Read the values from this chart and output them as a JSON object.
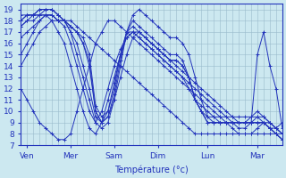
{
  "xlabel": "Température (°c)",
  "background_color": "#cce8f0",
  "line_color": "#2233bb",
  "grid_color": "#99bbcc",
  "ylim": [
    7,
    19.5
  ],
  "xlim": [
    0,
    42
  ],
  "xtick_labels": [
    "Ven",
    "Mer",
    "Sam",
    "Dim",
    "Lun",
    "Mar"
  ],
  "xtick_positions": [
    1,
    8,
    15,
    22,
    30,
    38
  ],
  "ytick_positions": [
    7,
    8,
    9,
    10,
    11,
    12,
    13,
    14,
    15,
    16,
    17,
    18,
    19
  ],
  "n_steps": 43,
  "series": [
    [
      0,
      14,
      1,
      15,
      2,
      16,
      3,
      17,
      4,
      17.5,
      5,
      18,
      6,
      18,
      7,
      18,
      8,
      18,
      9,
      17.5,
      10,
      17,
      11,
      16.5,
      12,
      16,
      13,
      15.5,
      14,
      15,
      15,
      14.5,
      16,
      14,
      17,
      13.5,
      18,
      13,
      19,
      12.5,
      20,
      12,
      21,
      11.5,
      22,
      11,
      23,
      10.5,
      24,
      10,
      25,
      9.5,
      26,
      9,
      27,
      8.5,
      28,
      8,
      29,
      8,
      30,
      8,
      31,
      8,
      32,
      8,
      33,
      8,
      34,
      8,
      35,
      8,
      36,
      8,
      37,
      8,
      38,
      8,
      39,
      8,
      40,
      8,
      41,
      8,
      42,
      8
    ],
    [
      0,
      12,
      1,
      11,
      2,
      10,
      3,
      9,
      4,
      8.5,
      5,
      8,
      6,
      7.5,
      7,
      7.5,
      8,
      8,
      9,
      10,
      10,
      12,
      11,
      14,
      12,
      16,
      13,
      17,
      14,
      18,
      15,
      18,
      16,
      17.5,
      17,
      17,
      18,
      16.5,
      19,
      16,
      20,
      15.5,
      21,
      15,
      22,
      14.5,
      23,
      14,
      24,
      13.5,
      25,
      13,
      26,
      12.5,
      27,
      12,
      28,
      11.5,
      29,
      11,
      30,
      10.5,
      31,
      10,
      32,
      9.5,
      33,
      9,
      34,
      8.5,
      35,
      8,
      36,
      8,
      37,
      8,
      38,
      8.5,
      39,
      9,
      40,
      9,
      41,
      8.5,
      42,
      8
    ],
    [
      0,
      15,
      1,
      16,
      2,
      17,
      3,
      18,
      4,
      18.5,
      5,
      18,
      6,
      17,
      7,
      16,
      8,
      14,
      9,
      12,
      10,
      10,
      11,
      8.5,
      12,
      8,
      13,
      9,
      14,
      11,
      15,
      13,
      16,
      15,
      17,
      16.5,
      18,
      17,
      19,
      16.5,
      20,
      16,
      21,
      15.5,
      22,
      15,
      23,
      14.5,
      24,
      14,
      25,
      13.5,
      26,
      13,
      27,
      12.5,
      28,
      12,
      29,
      11.5,
      30,
      11,
      31,
      10.5,
      32,
      10,
      33,
      9.5,
      34,
      9,
      35,
      8.5,
      36,
      8.5,
      37,
      9,
      38,
      9.5,
      39,
      9,
      40,
      8.5,
      41,
      8,
      42,
      7.5
    ],
    [
      0,
      16.5,
      1,
      17,
      2,
      17.5,
      3,
      18,
      4,
      18.5,
      5,
      18.5,
      6,
      18,
      7,
      17.5,
      8,
      16,
      9,
      14,
      10,
      12,
      11,
      10,
      12,
      9,
      13,
      10,
      14,
      12,
      15,
      14,
      16,
      15.5,
      17,
      16.5,
      18,
      17,
      19,
      16.5,
      20,
      16,
      21,
      15.5,
      22,
      15,
      23,
      14.5,
      24,
      14,
      25,
      13.5,
      26,
      13,
      27,
      12,
      28,
      11,
      29,
      10.5,
      30,
      10,
      31,
      9.5,
      32,
      9,
      33,
      9,
      34,
      9,
      35,
      9,
      36,
      9,
      37,
      9,
      38,
      9,
      39,
      9,
      40,
      8.5,
      41,
      8,
      42,
      7.5
    ],
    [
      0,
      17.5,
      1,
      18,
      2,
      18,
      3,
      18.5,
      4,
      19,
      5,
      19,
      6,
      18.5,
      7,
      18,
      8,
      17,
      9,
      15,
      10,
      13,
      11,
      11,
      12,
      9,
      13,
      8.5,
      14,
      9,
      15,
      11,
      16,
      13,
      17,
      15,
      18,
      16.5,
      19,
      17,
      20,
      16.5,
      21,
      16,
      22,
      15.5,
      23,
      15,
      24,
      14.5,
      25,
      14,
      26,
      13.5,
      27,
      13,
      28,
      12.5,
      29,
      12,
      30,
      11.5,
      31,
      11,
      32,
      10.5,
      33,
      10,
      34,
      9.5,
      35,
      9,
      36,
      9,
      37,
      9.5,
      38,
      10,
      39,
      9.5,
      40,
      9,
      41,
      8.5,
      42,
      8
    ],
    [
      0,
      17.5,
      1,
      18,
      2,
      18.5,
      3,
      19,
      4,
      19,
      5,
      19,
      6,
      18.5,
      7,
      18,
      8,
      17,
      9,
      16,
      10,
      14,
      11,
      12,
      12,
      9.5,
      13,
      9,
      14,
      10,
      15,
      12.5,
      16,
      15,
      17,
      17,
      18,
      18.5,
      19,
      19,
      20,
      18.5,
      21,
      18,
      22,
      17.5,
      23,
      17,
      24,
      16.5,
      25,
      16.5,
      26,
      16,
      27,
      15,
      28,
      13,
      29,
      11,
      30,
      9.5,
      31,
      9,
      32,
      9,
      33,
      9,
      34,
      9,
      35,
      9,
      36,
      9,
      37,
      9,
      38,
      9,
      39,
      9,
      40,
      8.5,
      41,
      8,
      42,
      7.5
    ],
    [
      0,
      18,
      1,
      18.5,
      2,
      18.5,
      3,
      19,
      4,
      19,
      5,
      19,
      6,
      18.5,
      7,
      18,
      8,
      17.5,
      9,
      17,
      10,
      16,
      11,
      14,
      12,
      10,
      13,
      9,
      14,
      9.5,
      15,
      11,
      16,
      14,
      17,
      17,
      18,
      18,
      19,
      17.5,
      20,
      17,
      21,
      16.5,
      22,
      16,
      23,
      15.5,
      24,
      15,
      25,
      15,
      26,
      14.5,
      27,
      13,
      28,
      11,
      29,
      10,
      30,
      9,
      31,
      9,
      32,
      9,
      33,
      9,
      34,
      9,
      35,
      9,
      36,
      9,
      37,
      9,
      38,
      15,
      39,
      17,
      40,
      14,
      41,
      12,
      42,
      8.5
    ],
    [
      0,
      18,
      1,
      18.5,
      2,
      18.5,
      3,
      18.5,
      4,
      18.5,
      5,
      18.5,
      6,
      18,
      7,
      18,
      8,
      17.5,
      9,
      17,
      10,
      16,
      11,
      14.5,
      12,
      10,
      13,
      9,
      14,
      9.5,
      15,
      11.5,
      16,
      14.5,
      17,
      17,
      18,
      17.5,
      19,
      17,
      20,
      16.5,
      21,
      16,
      22,
      15.5,
      23,
      15,
      24,
      14.5,
      25,
      14.5,
      26,
      14,
      27,
      13,
      28,
      11,
      29,
      10,
      30,
      9,
      31,
      9,
      32,
      9,
      33,
      9,
      34,
      9,
      35,
      9,
      36,
      9,
      37,
      9,
      38,
      9,
      39,
      9,
      40,
      8.5,
      41,
      8.5,
      42,
      9
    ],
    [
      0,
      18.5,
      1,
      18.5,
      2,
      18.5,
      3,
      18.5,
      4,
      18.5,
      5,
      18.5,
      6,
      18,
      7,
      18,
      8,
      17.5,
      9,
      17,
      10,
      16.5,
      11,
      15,
      12,
      10.5,
      13,
      9.5,
      14,
      10,
      15,
      12,
      16,
      15,
      17,
      17,
      18,
      17,
      19,
      17,
      20,
      16.5,
      21,
      16,
      22,
      15.5,
      23,
      15,
      24,
      14.5,
      25,
      14.5,
      26,
      14,
      27,
      13,
      28,
      11,
      29,
      10,
      30,
      9.5,
      31,
      9.5,
      32,
      9.5,
      33,
      9.5,
      34,
      9.5,
      35,
      9.5,
      36,
      9.5,
      37,
      9.5,
      38,
      9.5,
      39,
      9.5,
      40,
      9,
      41,
      8.5,
      42,
      8
    ]
  ]
}
